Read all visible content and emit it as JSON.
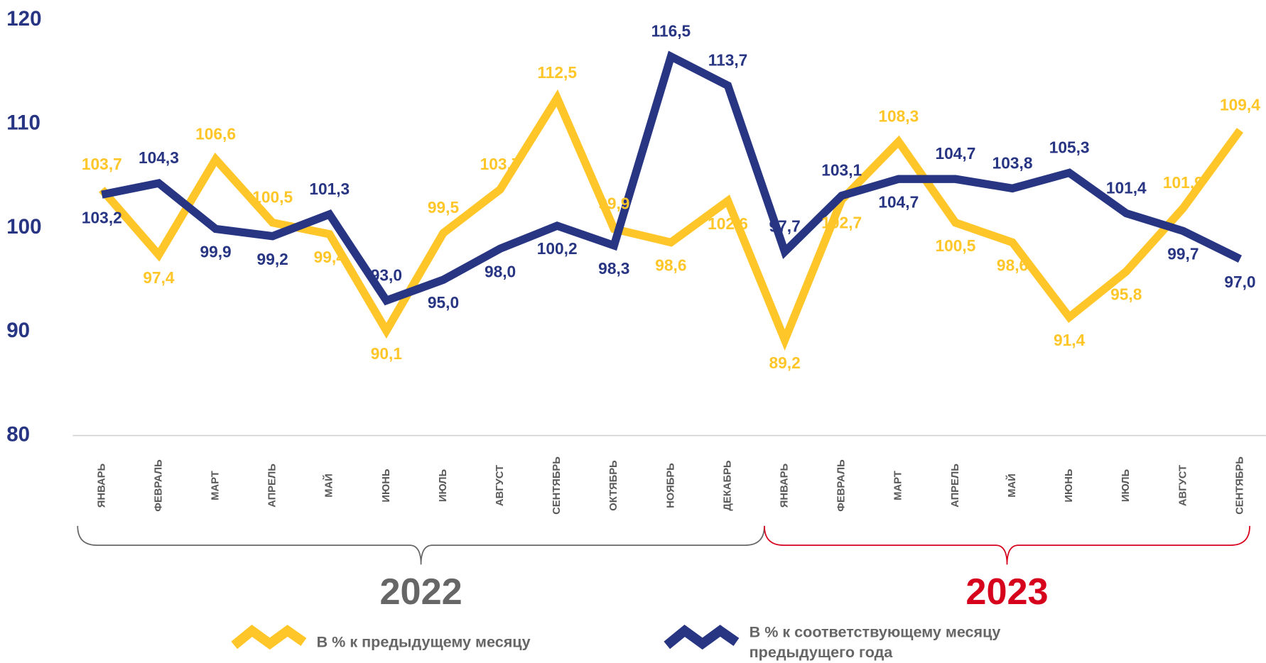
{
  "chart_data": {
    "type": "line",
    "categories": [
      "ЯНВАРЬ",
      "ФЕВРАЛЬ",
      "МАРТ",
      "АПРЕЛЬ",
      "МАЙ",
      "ИЮНЬ",
      "ИЮЛЬ",
      "АВГУСТ",
      "СЕНТЯБРЬ",
      "ОКТЯБРЬ",
      "НОЯБРЬ",
      "ДЕКАБРЬ",
      "ЯНВАРЬ",
      "ФЕВРАЛЬ",
      "МАРТ",
      "АПРЕЛЬ",
      "МАЙ",
      "ИЮНЬ",
      "ИЮЛЬ",
      "АВГУСТ",
      "СЕНТЯБРЬ"
    ],
    "groups": [
      {
        "label": "2022",
        "color": "#666666"
      },
      {
        "label": "2023",
        "color": "#d6001c"
      }
    ],
    "series": [
      {
        "name": "В % к предыдущему месяцу",
        "color": "#ffc629",
        "values": [
          103.7,
          97.4,
          106.6,
          100.5,
          99.4,
          90.1,
          99.5,
          103.7,
          112.5,
          99.9,
          98.6,
          102.6,
          89.2,
          102.7,
          108.3,
          100.5,
          98.6,
          91.4,
          95.8,
          101.9,
          109.4
        ],
        "value_labels": [
          "103,7",
          "97,4",
          "106,6",
          "100,5",
          "99,4",
          "90,1",
          "99,5",
          "103,7",
          "112,5",
          "99,9",
          "98,6",
          "102,6",
          "89,2",
          "102,7",
          "108,3",
          "100,5",
          "98,6",
          "91,4",
          "95,8",
          "101,9",
          "109,4"
        ]
      },
      {
        "name": "В % к соответствующему месяцу предыдущего года",
        "color": "#283583",
        "values": [
          103.2,
          104.3,
          99.9,
          99.2,
          101.3,
          93.0,
          95.0,
          98.0,
          100.2,
          98.3,
          116.5,
          113.7,
          97.7,
          103.1,
          104.7,
          104.7,
          103.8,
          105.3,
          101.4,
          99.7,
          97.0
        ],
        "value_labels": [
          "103,2",
          "104,3",
          "99,9",
          "99,2",
          "101,3",
          "93,0",
          "95,0",
          "98,0",
          "100,2",
          "98,3",
          "116,5",
          "113,7",
          "97,7",
          "103,1",
          "104,7",
          "104,7",
          "103,8",
          "105,3",
          "101,4",
          "99,7",
          "97,0"
        ]
      }
    ],
    "ylim": [
      80,
      120
    ],
    "yticks": [
      80,
      90,
      100,
      110,
      120
    ]
  }
}
